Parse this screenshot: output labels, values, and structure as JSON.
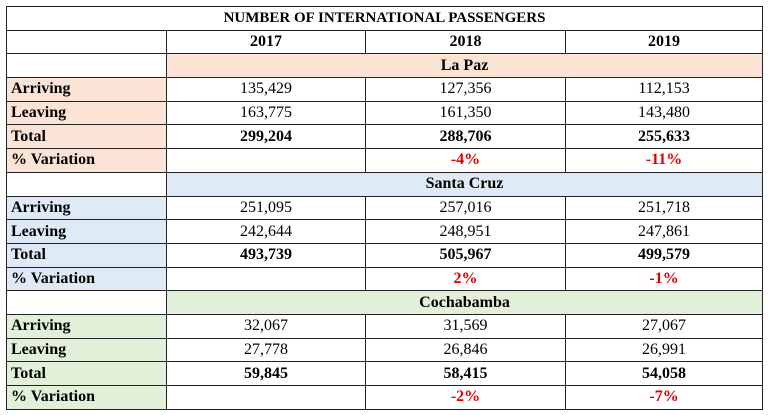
{
  "table": {
    "title": "NUMBER OF INTERNATIONAL PASSENGERS",
    "headers": [
      "2017",
      "2018",
      "2019"
    ],
    "sections": [
      {
        "name": "La Paz",
        "color": "#fbe4d5",
        "rows": [
          {
            "label": "Arriving",
            "values": [
              "135,429",
              "127,356",
              "112,153"
            ]
          },
          {
            "label": "Leaving",
            "values": [
              "163,775",
              "161,350",
              "143,480"
            ]
          },
          {
            "label": "Total",
            "values": [
              "299,204",
              "288,706",
              "255,633"
            ]
          },
          {
            "label": "% Variation",
            "values": [
              null,
              "-4%",
              "-11%"
            ]
          }
        ]
      },
      {
        "name": "Santa Cruz",
        "color": "#deebf6",
        "rows": [
          {
            "label": "Arriving",
            "values": [
              "251,095",
              "257,016",
              "251,718"
            ]
          },
          {
            "label": "Leaving",
            "values": [
              "242,644",
              "248,951",
              "247,861"
            ]
          },
          {
            "label": "Total",
            "values": [
              "493,739",
              "505,967",
              "499,579"
            ]
          },
          {
            "label": "% Variation",
            "values": [
              null,
              "2%",
              "-1%"
            ]
          }
        ]
      },
      {
        "name": "Cochabamba",
        "color": "#e2efd9",
        "rows": [
          {
            "label": "Arriving",
            "values": [
              "32,067",
              "31,569",
              "27,067"
            ]
          },
          {
            "label": "Leaving",
            "values": [
              "27,778",
              "26,846",
              "26,991"
            ]
          },
          {
            "label": "Total",
            "values": [
              "59,845",
              "58,415",
              "54,058"
            ]
          },
          {
            "label": "% Variation",
            "values": [
              null,
              "-2%",
              "-7%"
            ]
          }
        ]
      }
    ]
  }
}
